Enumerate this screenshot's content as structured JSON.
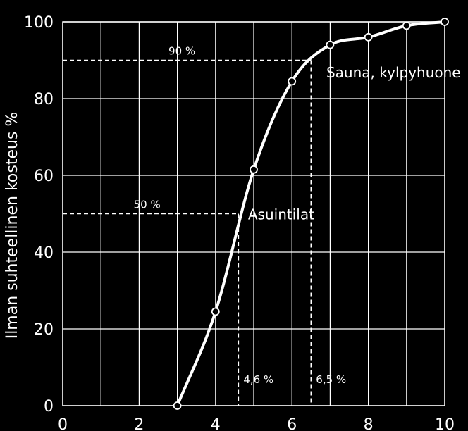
{
  "chart_data": {
    "type": "line",
    "title": "",
    "xlabel": "",
    "ylabel": "Ilman suhteellinen kosteus %",
    "xlim": [
      0,
      10
    ],
    "ylim": [
      0,
      100
    ],
    "x_ticks": [
      0,
      2,
      4,
      6,
      8,
      10
    ],
    "y_ticks": [
      0,
      20,
      40,
      60,
      80,
      100
    ],
    "grid": true,
    "colors": {
      "background": "#000000",
      "foreground": "#ffffff"
    },
    "series": [
      {
        "marker": "circle",
        "points": [
          {
            "x": 3.0,
            "y": 0
          },
          {
            "x": 4.0,
            "y": 24.5
          },
          {
            "x": 5.0,
            "y": 61.5
          },
          {
            "x": 6.0,
            "y": 84.5
          },
          {
            "x": 7.0,
            "y": 94
          },
          {
            "x": 8.0,
            "y": 96
          },
          {
            "x": 9.0,
            "y": 99
          },
          {
            "x": 10.0,
            "y": 100
          }
        ]
      }
    ],
    "reference_lines": [
      {
        "level_label": "50 %",
        "y": 50,
        "x": 4.6,
        "x_label": "4,6 %"
      },
      {
        "level_label": "90 %",
        "y": 90,
        "x": 6.5,
        "x_label": "6,5 %"
      }
    ],
    "annotations": [
      {
        "text": "Asuintilat",
        "x": 4.85,
        "y": 50
      },
      {
        "text": "Sauna, kylpyhuone",
        "x": 6.9,
        "y": 87
      }
    ]
  }
}
